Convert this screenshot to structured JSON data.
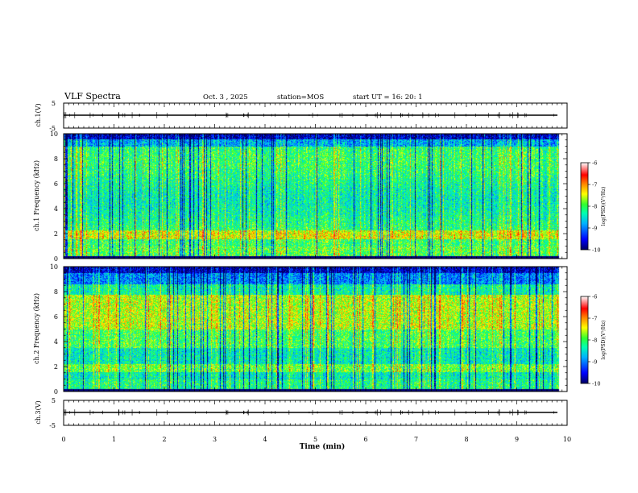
{
  "header": {
    "title": "VLF Spectra",
    "date": "Oct. 3 , 2025",
    "station": "station=MOS",
    "start_ut": "start UT =  16: 20: 1"
  },
  "chart_data": [
    {
      "type": "line",
      "panel": "ch1-waveform",
      "ylabel": "ch.1(V)",
      "ylim": [
        -5,
        5
      ],
      "y_ticks": [
        "5",
        "-5"
      ],
      "x": [
        0,
        9.82
      ],
      "values": [
        0,
        0
      ]
    },
    {
      "type": "heatmap",
      "panel": "ch1-spectrogram",
      "ylabel": "ch.1 Frequency (kHz)",
      "ylim": [
        0,
        10
      ],
      "y_ticks": [
        "0",
        "2",
        "4",
        "6",
        "8",
        "10"
      ],
      "xlim": [
        0,
        10
      ],
      "data_end_min": 9.82,
      "colorbar": {
        "label": "log(PSD)(V²/Hz)",
        "range": [
          -10,
          -6
        ],
        "ticks": [
          "-6",
          "-7",
          "-8",
          "-9",
          "-10"
        ]
      }
    },
    {
      "type": "heatmap",
      "panel": "ch2-spectrogram",
      "ylabel": "ch.2 Frequency (kHz)",
      "ylim": [
        0,
        10
      ],
      "y_ticks": [
        "0",
        "2",
        "4",
        "6",
        "8",
        "10"
      ],
      "xlim": [
        0,
        10
      ],
      "data_end_min": 9.82,
      "colorbar": {
        "label": "log(PSD)(V²/Hz)",
        "range": [
          -10,
          -6
        ],
        "ticks": [
          "-6",
          "-7",
          "-8",
          "-9",
          "-10"
        ]
      }
    },
    {
      "type": "line",
      "panel": "ch3-waveform",
      "ylabel": "ch.3(V)",
      "ylim": [
        -5,
        5
      ],
      "y_ticks": [
        "5",
        "-5"
      ],
      "x": [
        0,
        9.82
      ],
      "values": [
        0,
        0
      ]
    }
  ],
  "x_axis": {
    "label": "Time (min)",
    "range": [
      0,
      10
    ],
    "ticks": [
      "0",
      "1",
      "2",
      "3",
      "4",
      "5",
      "6",
      "7",
      "8",
      "9",
      "10"
    ]
  },
  "colors": {
    "colormap": [
      "#000080",
      "#0000ff",
      "#00a0ff",
      "#00ffd0",
      "#30ff30",
      "#ffff00",
      "#ff8000",
      "#ff0000",
      "#ffffff"
    ]
  }
}
